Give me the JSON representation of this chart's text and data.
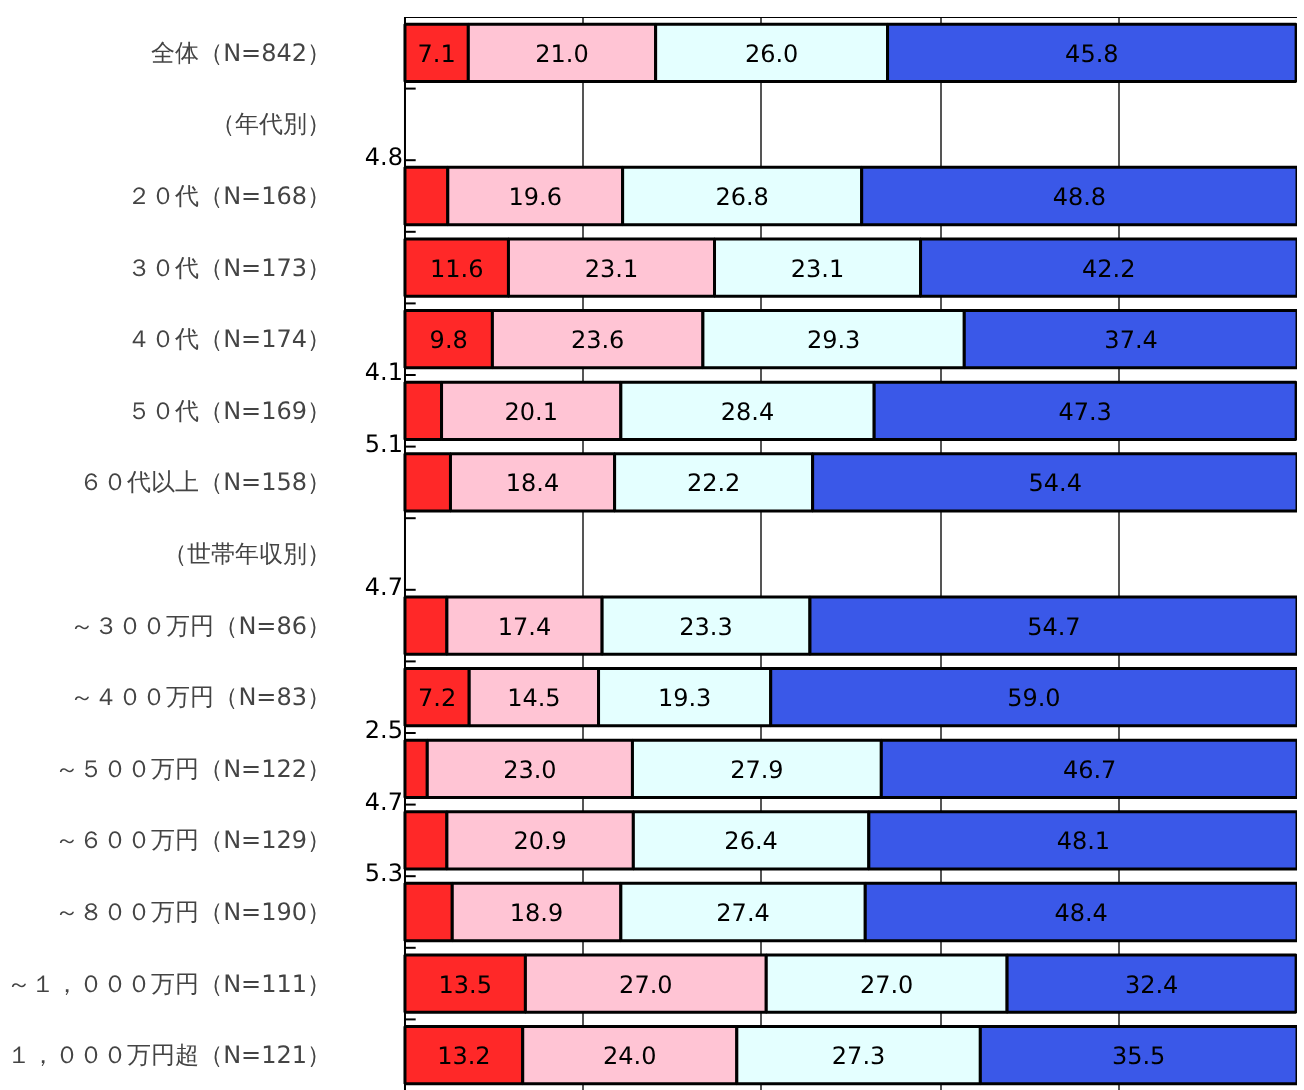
{
  "chart_data": {
    "type": "bar",
    "orientation": "horizontal",
    "stacked": true,
    "data_labels": true,
    "grid": "x",
    "tick_labels": "y",
    "xlim": [
      0,
      100
    ],
    "xticks": [
      {
        "value": 20,
        "label": null
      },
      {
        "value": 40,
        "label": null
      },
      {
        "value": 60,
        "label": null
      },
      {
        "value": 80,
        "label": null
      }
    ],
    "categories": [
      "全体（N=842）",
      "（年代別）",
      "２０代（N=168）",
      "３０代（N=173）",
      "４０代（N=174）",
      "５０代（N=169）",
      "６０代以上（N=158）",
      "（世帯年収別）",
      "～３００万円（N=86）",
      "～４００万円（N=83）",
      "～５００万円（N=122）",
      "～６００万円（N=129）",
      "～８００万円（N=190）",
      "～１，０００万円（N=111）",
      "１，０００万円超（N=121）"
    ],
    "series": [
      {
        "color": "#ff2828",
        "values": [
          7.1,
          null,
          4.8,
          11.6,
          9.8,
          4.1,
          5.1,
          null,
          4.7,
          7.2,
          2.5,
          4.7,
          5.3,
          13.5,
          13.2
        ],
        "value_labels": [
          "7.1",
          null,
          "4.8",
          "11.6",
          "9.8",
          "4.1",
          "5.1",
          null,
          "4.7",
          "7.2",
          "2.5",
          "4.7",
          "5.3",
          "13.5",
          "13.2"
        ]
      },
      {
        "color": "#ffc4d4",
        "values": [
          21.0,
          null,
          19.6,
          23.1,
          23.6,
          20.1,
          18.4,
          null,
          17.4,
          14.5,
          23.0,
          20.9,
          18.9,
          27.0,
          24.0
        ],
        "value_labels": [
          "21.0",
          null,
          "19.6",
          "23.1",
          "23.6",
          "20.1",
          "18.4",
          null,
          "17.4",
          "14.5",
          "23.0",
          "20.9",
          "18.9",
          "27.0",
          "24.0"
        ]
      },
      {
        "color": "#e4ffff",
        "values": [
          26.0,
          null,
          26.8,
          23.1,
          29.3,
          28.4,
          22.2,
          null,
          23.3,
          19.3,
          27.9,
          26.4,
          27.4,
          27.0,
          27.3
        ],
        "value_labels": [
          "26.0",
          null,
          "26.8",
          "23.1",
          "29.3",
          "28.4",
          "22.2",
          null,
          "23.3",
          "19.3",
          "27.9",
          "26.4",
          "27.4",
          "27.0",
          "27.3"
        ]
      },
      {
        "color": "#3a58e8",
        "values": [
          45.8,
          null,
          48.8,
          42.2,
          37.4,
          47.3,
          54.4,
          null,
          54.7,
          59.0,
          46.7,
          48.1,
          48.4,
          32.4,
          35.5
        ],
        "value_labels": [
          "45.8",
          null,
          "48.8",
          "42.2",
          "37.4",
          "47.3",
          "54.4",
          null,
          "54.7",
          "59.0",
          "46.7",
          "48.1",
          "48.4",
          "32.4",
          "35.5"
        ]
      }
    ]
  }
}
